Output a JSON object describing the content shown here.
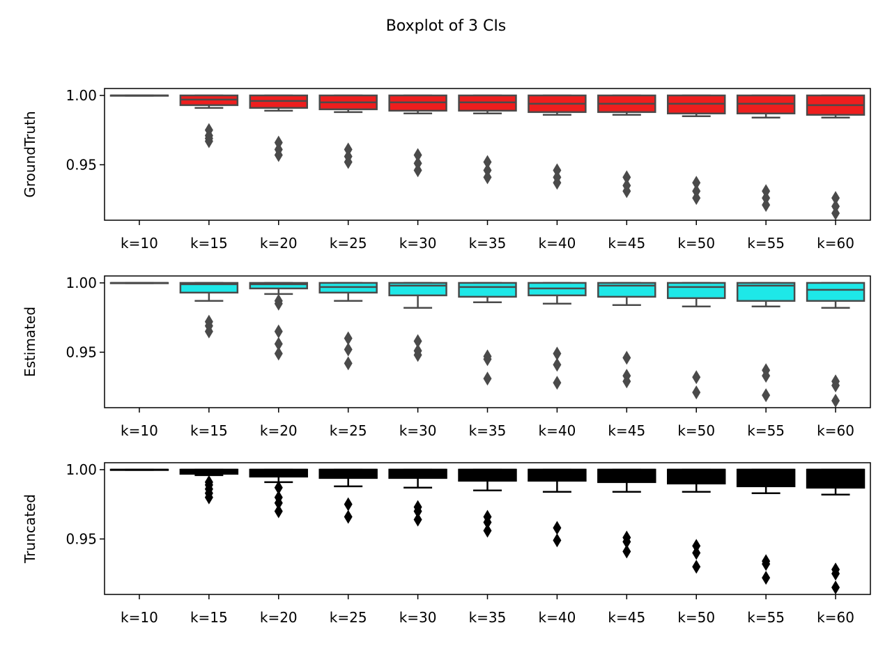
{
  "chart_data": {
    "title": "Boxplot of 3 CIs",
    "type": "box",
    "categories": [
      "k=10",
      "k=15",
      "k=20",
      "k=25",
      "k=30",
      "k=35",
      "k=40",
      "k=45",
      "k=50",
      "k=55",
      "k=60"
    ],
    "ylim": [
      0.91,
      1.005
    ],
    "yticks": [
      0.95,
      1.0
    ],
    "ytick_labels": [
      "0.95",
      "1.00"
    ],
    "panels": [
      {
        "name": "GroundTruth",
        "ylabel": "GroundTruth",
        "color": "#ee1e1e",
        "edge": "#4a4a4a",
        "boxes": [
          {
            "whislo": 0.9998,
            "q1": 0.9999,
            "med": 1.0,
            "q3": 1.0,
            "whishi": 1.0,
            "fliers": []
          },
          {
            "whislo": 0.991,
            "q1": 0.993,
            "med": 0.997,
            "q3": 1.0,
            "whishi": 1.0,
            "fliers": [
              0.967,
              0.969,
              0.971,
              0.975
            ]
          },
          {
            "whislo": 0.989,
            "q1": 0.991,
            "med": 0.996,
            "q3": 1.0,
            "whishi": 1.0,
            "fliers": [
              0.957,
              0.961,
              0.966
            ]
          },
          {
            "whislo": 0.988,
            "q1": 0.99,
            "med": 0.995,
            "q3": 1.0,
            "whishi": 1.0,
            "fliers": [
              0.952,
              0.956,
              0.961
            ]
          },
          {
            "whislo": 0.987,
            "q1": 0.989,
            "med": 0.995,
            "q3": 1.0,
            "whishi": 1.0,
            "fliers": [
              0.946,
              0.951,
              0.957
            ]
          },
          {
            "whislo": 0.987,
            "q1": 0.989,
            "med": 0.995,
            "q3": 1.0,
            "whishi": 1.0,
            "fliers": [
              0.941,
              0.946,
              0.952
            ]
          },
          {
            "whislo": 0.986,
            "q1": 0.988,
            "med": 0.994,
            "q3": 1.0,
            "whishi": 1.0,
            "fliers": [
              0.937,
              0.941,
              0.946
            ]
          },
          {
            "whislo": 0.986,
            "q1": 0.988,
            "med": 0.994,
            "q3": 1.0,
            "whishi": 1.0,
            "fliers": [
              0.931,
              0.935,
              0.941
            ]
          },
          {
            "whislo": 0.985,
            "q1": 0.987,
            "med": 0.994,
            "q3": 1.0,
            "whishi": 1.0,
            "fliers": [
              0.926,
              0.931,
              0.937
            ]
          },
          {
            "whislo": 0.984,
            "q1": 0.987,
            "med": 0.994,
            "q3": 1.0,
            "whishi": 1.0,
            "fliers": [
              0.921,
              0.926,
              0.931
            ]
          },
          {
            "whislo": 0.984,
            "q1": 0.986,
            "med": 0.993,
            "q3": 1.0,
            "whishi": 1.0,
            "fliers": [
              0.915,
              0.92,
              0.926
            ]
          }
        ]
      },
      {
        "name": "Estimated",
        "ylabel": "Estimated",
        "color": "#1ee8e8",
        "edge": "#4a4a4a",
        "boxes": [
          {
            "whislo": 0.9998,
            "q1": 0.9999,
            "med": 1.0,
            "q3": 1.0,
            "whishi": 1.0,
            "fliers": []
          },
          {
            "whislo": 0.987,
            "q1": 0.993,
            "med": 0.999,
            "q3": 1.0,
            "whishi": 1.0,
            "fliers": [
              0.965,
              0.969,
              0.972
            ]
          },
          {
            "whislo": 0.992,
            "q1": 0.996,
            "med": 0.999,
            "q3": 1.0,
            "whishi": 1.0,
            "fliers": [
              0.949,
              0.956,
              0.965,
              0.985,
              0.987
            ]
          },
          {
            "whislo": 0.987,
            "q1": 0.993,
            "med": 0.997,
            "q3": 1.0,
            "whishi": 1.0,
            "fliers": [
              0.942,
              0.952,
              0.96
            ]
          },
          {
            "whislo": 0.982,
            "q1": 0.991,
            "med": 0.998,
            "q3": 1.0,
            "whishi": 1.0,
            "fliers": [
              0.948,
              0.951,
              0.958
            ]
          },
          {
            "whislo": 0.986,
            "q1": 0.99,
            "med": 0.997,
            "q3": 1.0,
            "whishi": 1.0,
            "fliers": [
              0.931,
              0.945,
              0.947
            ]
          },
          {
            "whislo": 0.985,
            "q1": 0.991,
            "med": 0.996,
            "q3": 1.0,
            "whishi": 1.0,
            "fliers": [
              0.928,
              0.941,
              0.949
            ]
          },
          {
            "whislo": 0.984,
            "q1": 0.99,
            "med": 0.998,
            "q3": 1.0,
            "whishi": 1.0,
            "fliers": [
              0.929,
              0.933,
              0.946
            ]
          },
          {
            "whislo": 0.983,
            "q1": 0.989,
            "med": 0.997,
            "q3": 1.0,
            "whishi": 1.0,
            "fliers": [
              0.921,
              0.932
            ]
          },
          {
            "whislo": 0.983,
            "q1": 0.987,
            "med": 0.998,
            "q3": 1.0,
            "whishi": 1.0,
            "fliers": [
              0.919,
              0.933,
              0.937
            ]
          },
          {
            "whislo": 0.982,
            "q1": 0.987,
            "med": 0.995,
            "q3": 1.0,
            "whishi": 1.0,
            "fliers": [
              0.915,
              0.926,
              0.929
            ]
          }
        ]
      },
      {
        "name": "Truncated",
        "ylabel": "Truncated",
        "color": "#000000",
        "edge": "#000000",
        "boxes": [
          {
            "whislo": 0.9998,
            "q1": 0.9999,
            "med": 1.0,
            "q3": 1.0,
            "whishi": 1.0,
            "fliers": []
          },
          {
            "whislo": 0.996,
            "q1": 0.997,
            "med": 1.0,
            "q3": 1.0,
            "whishi": 1.0,
            "fliers": [
              0.98,
              0.983,
              0.986,
              0.989,
              0.991
            ]
          },
          {
            "whislo": 0.991,
            "q1": 0.995,
            "med": 1.0,
            "q3": 1.0,
            "whishi": 1.0,
            "fliers": [
              0.97,
              0.976,
              0.98,
              0.987
            ]
          },
          {
            "whislo": 0.988,
            "q1": 0.994,
            "med": 1.0,
            "q3": 1.0,
            "whishi": 1.0,
            "fliers": [
              0.966,
              0.975
            ]
          },
          {
            "whislo": 0.987,
            "q1": 0.994,
            "med": 1.0,
            "q3": 1.0,
            "whishi": 1.0,
            "fliers": [
              0.964,
              0.97,
              0.973
            ]
          },
          {
            "whislo": 0.985,
            "q1": 0.992,
            "med": 1.0,
            "q3": 1.0,
            "whishi": 1.0,
            "fliers": [
              0.956,
              0.962,
              0.966
            ]
          },
          {
            "whislo": 0.984,
            "q1": 0.992,
            "med": 1.0,
            "q3": 1.0,
            "whishi": 1.0,
            "fliers": [
              0.949,
              0.958
            ]
          },
          {
            "whislo": 0.984,
            "q1": 0.991,
            "med": 1.0,
            "q3": 1.0,
            "whishi": 1.0,
            "fliers": [
              0.941,
              0.948,
              0.951
            ]
          },
          {
            "whislo": 0.984,
            "q1": 0.99,
            "med": 1.0,
            "q3": 1.0,
            "whishi": 1.0,
            "fliers": [
              0.93,
              0.94,
              0.945
            ]
          },
          {
            "whislo": 0.983,
            "q1": 0.988,
            "med": 1.0,
            "q3": 1.0,
            "whishi": 1.0,
            "fliers": [
              0.922,
              0.932,
              0.934
            ]
          },
          {
            "whislo": 0.982,
            "q1": 0.987,
            "med": 1.0,
            "q3": 1.0,
            "whishi": 1.0,
            "fliers": [
              0.915,
              0.925,
              0.928
            ]
          }
        ]
      }
    ]
  }
}
